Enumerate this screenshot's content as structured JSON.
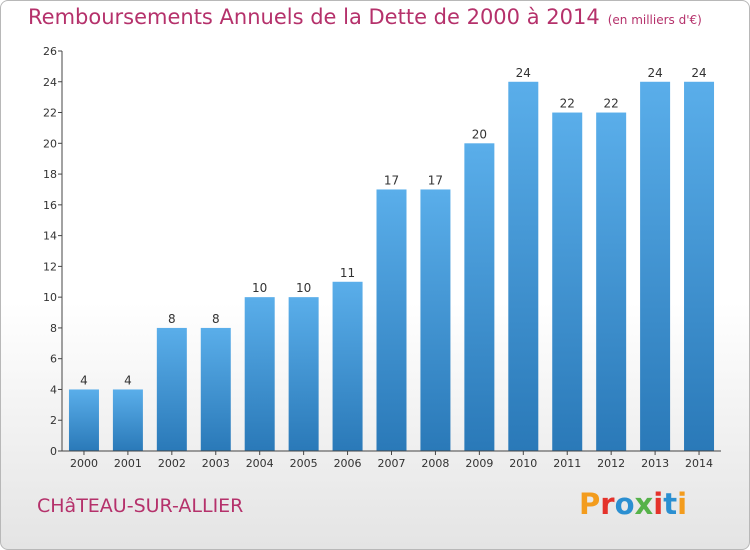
{
  "header": {
    "title": "Remboursements Annuels de la Dette de 2000 à 2014",
    "unit": "(en milliers d'€)"
  },
  "footer": {
    "city": "CHâTEAU-SUR-ALLIER",
    "logo_text": "Proxiti",
    "logo_colors": [
      "#f39c1d",
      "#e4322b",
      "#2b8fd1",
      "#56b24a",
      "#e4322b",
      "#2b8fd1",
      "#f39c1d"
    ]
  },
  "chart_data": {
    "type": "bar",
    "title": "Remboursements Annuels de la Dette de 2000 à 2014",
    "categories": [
      "2000",
      "2001",
      "2002",
      "2003",
      "2004",
      "2005",
      "2006",
      "2007",
      "2008",
      "2009",
      "2010",
      "2011",
      "2012",
      "2013",
      "2014"
    ],
    "values": [
      4,
      4,
      8,
      8,
      10,
      10,
      11,
      17,
      17,
      20,
      24,
      22,
      22,
      24,
      24
    ],
    "value_labels": [
      "4",
      "4",
      "8",
      "8",
      "10",
      "10",
      "11",
      "17",
      "17",
      "20",
      "24",
      "22",
      "22",
      "24",
      "24"
    ],
    "y_ticks": [
      "0",
      "2",
      "4",
      "6",
      "8",
      "10",
      "12",
      "14",
      "16",
      "18",
      "20",
      "22",
      "24",
      "26"
    ],
    "xlabel": "",
    "ylabel": "",
    "ylim": [
      0,
      26
    ],
    "grid": false,
    "legend": "none",
    "bar_color_light": "#5aaeea",
    "bar_color_dark": "#2a79b8"
  }
}
